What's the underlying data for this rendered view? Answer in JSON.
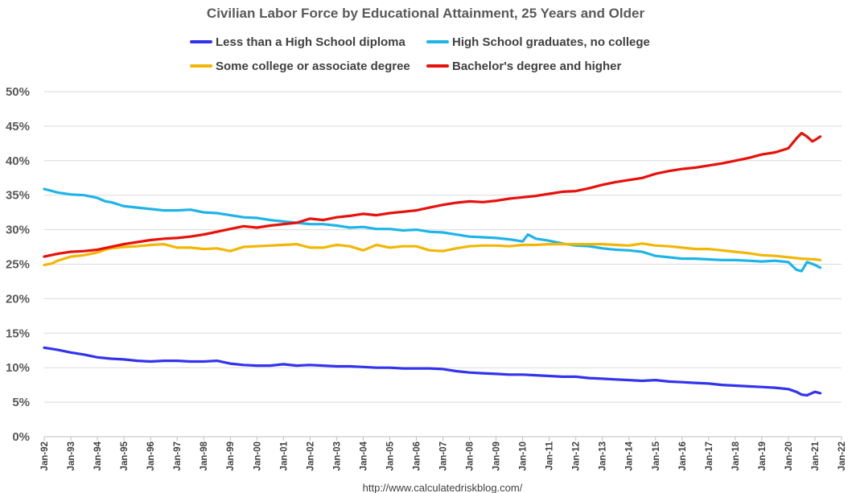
{
  "chart_data": {
    "type": "line",
    "title": "Civilian Labor Force by Educational Attainment, 25 Years and Older",
    "source": "http://www.calculatedriskblog.com/",
    "ylim": [
      0,
      50
    ],
    "yticks": [
      0,
      5,
      10,
      15,
      20,
      25,
      30,
      35,
      40,
      45,
      50
    ],
    "ytick_labels": [
      "0%",
      "5%",
      "10%",
      "15%",
      "20%",
      "25%",
      "30%",
      "35%",
      "40%",
      "45%",
      "50%"
    ],
    "xlim": [
      1992,
      2022
    ],
    "xticks": [
      1992,
      1993,
      1994,
      1995,
      1996,
      1997,
      1998,
      1999,
      2000,
      2001,
      2002,
      2003,
      2004,
      2005,
      2006,
      2007,
      2008,
      2009,
      2010,
      2011,
      2012,
      2013,
      2014,
      2015,
      2016,
      2017,
      2018,
      2019,
      2020,
      2021,
      2022
    ],
    "xtick_labels": [
      "Jan-92",
      "Jan-93",
      "Jan-94",
      "Jan-95",
      "Jan-96",
      "Jan-97",
      "Jan-98",
      "Jan-99",
      "Jan-00",
      "Jan-01",
      "Jan-02",
      "Jan-03",
      "Jan-04",
      "Jan-05",
      "Jan-06",
      "Jan-07",
      "Jan-08",
      "Jan-09",
      "Jan-10",
      "Jan-11",
      "Jan-12",
      "Jan-13",
      "Jan-14",
      "Jan-15",
      "Jan-16",
      "Jan-17",
      "Jan-18",
      "Jan-19",
      "Jan-20",
      "Jan-21",
      "Jan-22"
    ],
    "grid": "horizontal",
    "legend_position": "top",
    "series": [
      {
        "name": "Less than a High School diploma",
        "color": "#3333ee",
        "points": [
          [
            1992.0,
            12.9
          ],
          [
            1992.5,
            12.6
          ],
          [
            1993.0,
            12.2
          ],
          [
            1993.5,
            11.9
          ],
          [
            1994.0,
            11.5
          ],
          [
            1994.5,
            11.3
          ],
          [
            1995.0,
            11.2
          ],
          [
            1995.5,
            11.0
          ],
          [
            1996.0,
            10.9
          ],
          [
            1996.5,
            11.0
          ],
          [
            1997.0,
            11.0
          ],
          [
            1997.5,
            10.9
          ],
          [
            1998.0,
            10.9
          ],
          [
            1998.5,
            11.0
          ],
          [
            1999.0,
            10.6
          ],
          [
            1999.5,
            10.4
          ],
          [
            2000.0,
            10.3
          ],
          [
            2000.5,
            10.3
          ],
          [
            2001.0,
            10.5
          ],
          [
            2001.5,
            10.3
          ],
          [
            2002.0,
            10.4
          ],
          [
            2002.5,
            10.3
          ],
          [
            2003.0,
            10.2
          ],
          [
            2003.5,
            10.2
          ],
          [
            2004.0,
            10.1
          ],
          [
            2004.5,
            10.0
          ],
          [
            2005.0,
            10.0
          ],
          [
            2005.5,
            9.9
          ],
          [
            2006.0,
            9.9
          ],
          [
            2006.5,
            9.9
          ],
          [
            2007.0,
            9.8
          ],
          [
            2007.5,
            9.5
          ],
          [
            2008.0,
            9.3
          ],
          [
            2008.5,
            9.2
          ],
          [
            2009.0,
            9.1
          ],
          [
            2009.5,
            9.0
          ],
          [
            2010.0,
            9.0
          ],
          [
            2010.5,
            8.9
          ],
          [
            2011.0,
            8.8
          ],
          [
            2011.5,
            8.7
          ],
          [
            2012.0,
            8.7
          ],
          [
            2012.5,
            8.5
          ],
          [
            2013.0,
            8.4
          ],
          [
            2013.5,
            8.3
          ],
          [
            2014.0,
            8.2
          ],
          [
            2014.5,
            8.1
          ],
          [
            2015.0,
            8.2
          ],
          [
            2015.5,
            8.0
          ],
          [
            2016.0,
            7.9
          ],
          [
            2016.5,
            7.8
          ],
          [
            2017.0,
            7.7
          ],
          [
            2017.5,
            7.5
          ],
          [
            2018.0,
            7.4
          ],
          [
            2018.5,
            7.3
          ],
          [
            2019.0,
            7.2
          ],
          [
            2019.5,
            7.1
          ],
          [
            2020.0,
            6.9
          ],
          [
            2020.3,
            6.5
          ],
          [
            2020.5,
            6.1
          ],
          [
            2020.7,
            6.0
          ],
          [
            2021.0,
            6.5
          ],
          [
            2021.2,
            6.3
          ]
        ]
      },
      {
        "name": "High School graduates, no college",
        "color": "#1fb4e8",
        "points": [
          [
            1992.0,
            35.9
          ],
          [
            1992.5,
            35.4
          ],
          [
            1993.0,
            35.1
          ],
          [
            1993.5,
            35.0
          ],
          [
            1994.0,
            34.6
          ],
          [
            1994.3,
            34.1
          ],
          [
            1994.5,
            34.0
          ],
          [
            1995.0,
            33.4
          ],
          [
            1995.5,
            33.2
          ],
          [
            1996.0,
            33.0
          ],
          [
            1996.5,
            32.8
          ],
          [
            1997.0,
            32.8
          ],
          [
            1997.5,
            32.9
          ],
          [
            1998.0,
            32.5
          ],
          [
            1998.5,
            32.4
          ],
          [
            1999.0,
            32.1
          ],
          [
            1999.5,
            31.8
          ],
          [
            2000.0,
            31.7
          ],
          [
            2000.5,
            31.4
          ],
          [
            2001.0,
            31.2
          ],
          [
            2001.5,
            31.0
          ],
          [
            2002.0,
            30.8
          ],
          [
            2002.5,
            30.8
          ],
          [
            2003.0,
            30.6
          ],
          [
            2003.5,
            30.3
          ],
          [
            2004.0,
            30.4
          ],
          [
            2004.5,
            30.1
          ],
          [
            2005.0,
            30.1
          ],
          [
            2005.5,
            29.9
          ],
          [
            2006.0,
            30.0
          ],
          [
            2006.5,
            29.7
          ],
          [
            2007.0,
            29.6
          ],
          [
            2007.5,
            29.3
          ],
          [
            2008.0,
            29.0
          ],
          [
            2008.5,
            28.9
          ],
          [
            2009.0,
            28.8
          ],
          [
            2009.5,
            28.6
          ],
          [
            2010.0,
            28.3
          ],
          [
            2010.2,
            29.3
          ],
          [
            2010.5,
            28.7
          ],
          [
            2011.0,
            28.4
          ],
          [
            2011.5,
            28.0
          ],
          [
            2012.0,
            27.7
          ],
          [
            2012.5,
            27.6
          ],
          [
            2013.0,
            27.3
          ],
          [
            2013.5,
            27.1
          ],
          [
            2014.0,
            27.0
          ],
          [
            2014.5,
            26.8
          ],
          [
            2015.0,
            26.2
          ],
          [
            2015.5,
            26.0
          ],
          [
            2016.0,
            25.8
          ],
          [
            2016.5,
            25.8
          ],
          [
            2017.0,
            25.7
          ],
          [
            2017.5,
            25.6
          ],
          [
            2018.0,
            25.6
          ],
          [
            2018.5,
            25.5
          ],
          [
            2019.0,
            25.4
          ],
          [
            2019.5,
            25.5
          ],
          [
            2020.0,
            25.3
          ],
          [
            2020.3,
            24.2
          ],
          [
            2020.5,
            24.0
          ],
          [
            2020.7,
            25.3
          ],
          [
            2021.0,
            24.9
          ],
          [
            2021.2,
            24.5
          ]
        ]
      },
      {
        "name": "Some college or associate degree",
        "color": "#f2b705",
        "points": [
          [
            1992.0,
            24.9
          ],
          [
            1992.3,
            25.1
          ],
          [
            1992.5,
            25.5
          ],
          [
            1993.0,
            26.1
          ],
          [
            1993.5,
            26.3
          ],
          [
            1994.0,
            26.7
          ],
          [
            1994.3,
            27.1
          ],
          [
            1994.5,
            27.3
          ],
          [
            1995.0,
            27.5
          ],
          [
            1995.5,
            27.6
          ],
          [
            1996.0,
            27.8
          ],
          [
            1996.5,
            27.9
          ],
          [
            1997.0,
            27.4
          ],
          [
            1997.5,
            27.4
          ],
          [
            1998.0,
            27.2
          ],
          [
            1998.5,
            27.3
          ],
          [
            1999.0,
            26.9
          ],
          [
            1999.5,
            27.5
          ],
          [
            2000.0,
            27.6
          ],
          [
            2000.5,
            27.7
          ],
          [
            2001.0,
            27.8
          ],
          [
            2001.5,
            27.9
          ],
          [
            2002.0,
            27.4
          ],
          [
            2002.5,
            27.4
          ],
          [
            2003.0,
            27.8
          ],
          [
            2003.5,
            27.6
          ],
          [
            2004.0,
            27.0
          ],
          [
            2004.5,
            27.8
          ],
          [
            2005.0,
            27.4
          ],
          [
            2005.5,
            27.6
          ],
          [
            2006.0,
            27.6
          ],
          [
            2006.5,
            27.0
          ],
          [
            2007.0,
            26.9
          ],
          [
            2007.5,
            27.3
          ],
          [
            2008.0,
            27.6
          ],
          [
            2008.5,
            27.7
          ],
          [
            2009.0,
            27.7
          ],
          [
            2009.5,
            27.6
          ],
          [
            2010.0,
            27.8
          ],
          [
            2010.5,
            27.8
          ],
          [
            2011.0,
            27.9
          ],
          [
            2011.5,
            27.9
          ],
          [
            2012.0,
            27.9
          ],
          [
            2012.5,
            27.9
          ],
          [
            2013.0,
            27.9
          ],
          [
            2013.5,
            27.8
          ],
          [
            2014.0,
            27.7
          ],
          [
            2014.5,
            28.0
          ],
          [
            2015.0,
            27.7
          ],
          [
            2015.5,
            27.6
          ],
          [
            2016.0,
            27.4
          ],
          [
            2016.5,
            27.2
          ],
          [
            2017.0,
            27.2
          ],
          [
            2017.5,
            27.0
          ],
          [
            2018.0,
            26.8
          ],
          [
            2018.5,
            26.6
          ],
          [
            2019.0,
            26.3
          ],
          [
            2019.5,
            26.2
          ],
          [
            2020.0,
            26.0
          ],
          [
            2020.5,
            25.8
          ],
          [
            2021.0,
            25.7
          ],
          [
            2021.2,
            25.6
          ]
        ]
      },
      {
        "name": "Bachelor's degree and higher",
        "color": "#e8100a",
        "points": [
          [
            1992.0,
            26.1
          ],
          [
            1992.5,
            26.5
          ],
          [
            1993.0,
            26.8
          ],
          [
            1993.5,
            26.9
          ],
          [
            1994.0,
            27.1
          ],
          [
            1994.5,
            27.5
          ],
          [
            1995.0,
            27.9
          ],
          [
            1995.5,
            28.2
          ],
          [
            1996.0,
            28.5
          ],
          [
            1996.5,
            28.7
          ],
          [
            1997.0,
            28.8
          ],
          [
            1997.5,
            29.0
          ],
          [
            1998.0,
            29.3
          ],
          [
            1998.5,
            29.7
          ],
          [
            1999.0,
            30.1
          ],
          [
            1999.5,
            30.5
          ],
          [
            2000.0,
            30.3
          ],
          [
            2000.5,
            30.6
          ],
          [
            2001.0,
            30.8
          ],
          [
            2001.5,
            31.0
          ],
          [
            2002.0,
            31.6
          ],
          [
            2002.5,
            31.4
          ],
          [
            2003.0,
            31.8
          ],
          [
            2003.5,
            32.0
          ],
          [
            2004.0,
            32.3
          ],
          [
            2004.5,
            32.1
          ],
          [
            2005.0,
            32.4
          ],
          [
            2005.5,
            32.6
          ],
          [
            2006.0,
            32.8
          ],
          [
            2006.5,
            33.2
          ],
          [
            2007.0,
            33.6
          ],
          [
            2007.5,
            33.9
          ],
          [
            2008.0,
            34.1
          ],
          [
            2008.5,
            34.0
          ],
          [
            2009.0,
            34.2
          ],
          [
            2009.5,
            34.5
          ],
          [
            2010.0,
            34.7
          ],
          [
            2010.5,
            34.9
          ],
          [
            2011.0,
            35.2
          ],
          [
            2011.5,
            35.5
          ],
          [
            2012.0,
            35.6
          ],
          [
            2012.5,
            36.0
          ],
          [
            2013.0,
            36.5
          ],
          [
            2013.5,
            36.9
          ],
          [
            2014.0,
            37.2
          ],
          [
            2014.5,
            37.5
          ],
          [
            2015.0,
            38.1
          ],
          [
            2015.5,
            38.5
          ],
          [
            2016.0,
            38.8
          ],
          [
            2016.5,
            39.0
          ],
          [
            2017.0,
            39.3
          ],
          [
            2017.5,
            39.6
          ],
          [
            2018.0,
            40.0
          ],
          [
            2018.5,
            40.4
          ],
          [
            2019.0,
            40.9
          ],
          [
            2019.5,
            41.2
          ],
          [
            2020.0,
            41.8
          ],
          [
            2020.3,
            43.2
          ],
          [
            2020.5,
            44.0
          ],
          [
            2020.7,
            43.5
          ],
          [
            2020.9,
            42.8
          ],
          [
            2021.0,
            43.0
          ],
          [
            2021.2,
            43.5
          ]
        ]
      }
    ]
  }
}
